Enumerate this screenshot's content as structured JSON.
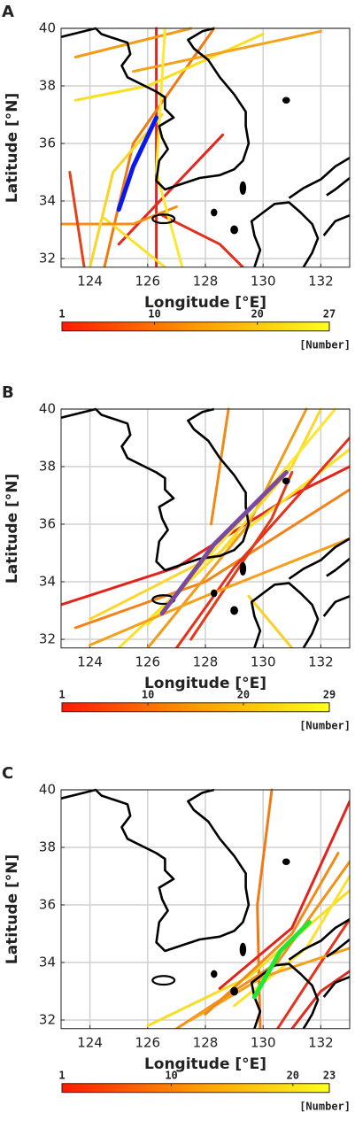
{
  "chart_data": [
    {
      "type": "line",
      "title": "A",
      "xlabel": "Longitude [°E]",
      "ylabel": "Latitude [°N]",
      "xlim": [
        123,
        133
      ],
      "ylim": [
        31.7,
        40
      ],
      "xticks": [
        124,
        126,
        128,
        130,
        132
      ],
      "yticks": [
        32,
        34,
        36,
        38,
        40
      ],
      "grid": true,
      "series": [
        {
          "color": "#e8221c",
          "x": [
            126.3,
            126.3
          ],
          "values": [
            31.7,
            40
          ]
        },
        {
          "color": "#f07a12",
          "x": [
            124.5,
            125.5,
            128.3
          ],
          "values": [
            31.7,
            36,
            40
          ]
        },
        {
          "color": "#f8e020",
          "x": [
            123.5,
            126,
            130
          ],
          "values": [
            37.5,
            38,
            39.8
          ]
        },
        {
          "color": "#f39a18",
          "x": [
            123.5,
            127.5
          ],
          "values": [
            39,
            40
          ]
        },
        {
          "color": "#e4281e",
          "x": [
            125,
            128.6
          ],
          "values": [
            32.5,
            36.3
          ]
        },
        {
          "color": "#fbe12a",
          "x": [
            124.5,
            126.6
          ],
          "values": [
            33.4,
            31.7
          ]
        },
        {
          "color": "#f38f16",
          "x": [
            123,
            125.5,
            127
          ],
          "values": [
            33.2,
            33.2,
            33.8
          ]
        },
        {
          "color": "#e3301c",
          "x": [
            126.5,
            128.5,
            129.3
          ],
          "values": [
            33.5,
            32.5,
            31.7
          ]
        },
        {
          "color": "#fbd424",
          "x": [
            124,
            124.8,
            126.5
          ],
          "values": [
            31.7,
            35,
            37
          ]
        },
        {
          "color": "#f5a21a",
          "x": [
            125.5,
            132
          ],
          "values": [
            38.5,
            39.9
          ]
        },
        {
          "color": "#e5401a",
          "x": [
            123.3,
            123.8
          ],
          "values": [
            35,
            31.7
          ]
        },
        {
          "color": "#fce830",
          "x": [
            127.2,
            126.3,
            126.6
          ],
          "values": [
            31.7,
            35,
            40
          ]
        },
        {
          "color": "#0a18f0",
          "linewidth": 5,
          "x": [
            125,
            125.5,
            126.3
          ],
          "values": [
            33.7,
            35.2,
            36.9
          ]
        }
      ],
      "colorbar": {
        "clim": [
          1,
          27
        ],
        "ticks": [
          1,
          10,
          20,
          27
        ],
        "label": "[Number]",
        "colors": [
          "#ff1a00",
          "#ff9a00",
          "#ffff20"
        ]
      }
    },
    {
      "type": "line",
      "title": "B",
      "xlabel": "Longitude [°E]",
      "ylabel": "Latitude [°N]",
      "xlim": [
        123,
        133
      ],
      "ylim": [
        31.7,
        40
      ],
      "xticks": [
        124,
        126,
        128,
        130,
        132
      ],
      "yticks": [
        32,
        34,
        36,
        38,
        40
      ],
      "grid": true,
      "series": [
        {
          "color": "#e4221c",
          "x": [
            123,
            127,
            131,
            133
          ],
          "values": [
            33.2,
            34.5,
            37,
            38
          ]
        },
        {
          "color": "#f28318",
          "x": [
            123.5,
            128,
            133
          ],
          "values": [
            32.4,
            34,
            37.2
          ]
        },
        {
          "color": "#fbe024",
          "x": [
            125,
            129,
            133
          ],
          "values": [
            31.7,
            35.5,
            38.6
          ]
        },
        {
          "color": "#f39a18",
          "x": [
            126,
            129.5,
            131.5
          ],
          "values": [
            31.7,
            36,
            40
          ]
        },
        {
          "color": "#e6301c",
          "x": [
            127,
            129,
            133
          ],
          "values": [
            31.7,
            34.5,
            39
          ]
        },
        {
          "color": "#fcd82a",
          "x": [
            124,
            128.5,
            131,
            132
          ],
          "values": [
            32.7,
            35,
            38,
            40
          ]
        },
        {
          "color": "#f08a14",
          "x": [
            128.2,
            128.8
          ],
          "values": [
            36,
            40
          ]
        },
        {
          "color": "#e33a1a",
          "x": [
            127.5,
            130.3,
            131
          ],
          "values": [
            32,
            36.2,
            37.8
          ]
        },
        {
          "color": "#fce630",
          "x": [
            126,
            130,
            132.5
          ],
          "values": [
            32.5,
            37,
            40
          ]
        },
        {
          "color": "#fbd020",
          "x": [
            129.5,
            131
          ],
          "values": [
            33.5,
            31.7
          ]
        },
        {
          "color": "#f4a01a",
          "x": [
            124,
            128,
            133
          ],
          "values": [
            31.8,
            33.5,
            35.5
          ]
        },
        {
          "color": "#7a4aa0",
          "linewidth": 5,
          "x": [
            126.5,
            128.3,
            130.8
          ],
          "values": [
            32.9,
            35.3,
            37.8
          ]
        }
      ],
      "colorbar": {
        "clim": [
          1,
          29
        ],
        "ticks": [
          1,
          10,
          20,
          29
        ],
        "label": "[Number]",
        "colors": [
          "#ff1a00",
          "#ff9a00",
          "#ffff20"
        ]
      }
    },
    {
      "type": "line",
      "title": "C",
      "xlabel": "Longitude [°E]",
      "ylabel": "Latitude [°N]",
      "xlim": [
        123,
        133
      ],
      "ylim": [
        31.7,
        40
      ],
      "xticks": [
        124,
        126,
        128,
        130,
        132
      ],
      "yticks": [
        32,
        34,
        36,
        38,
        40
      ],
      "grid": true,
      "series": [
        {
          "color": "#f07a14",
          "x": [
            129.9,
            129.8,
            130.3
          ],
          "values": [
            31.7,
            36,
            40
          ]
        },
        {
          "color": "#fbdc24",
          "x": [
            126,
            129.5,
            133
          ],
          "values": [
            31.8,
            33.5,
            36.5
          ]
        },
        {
          "color": "#f39018",
          "x": [
            127,
            130.5,
            133
          ],
          "values": [
            31.7,
            34,
            37.5
          ]
        },
        {
          "color": "#e4221c",
          "x": [
            128.5,
            131,
            133
          ],
          "values": [
            33.1,
            35.2,
            39.6
          ]
        },
        {
          "color": "#e6341c",
          "x": [
            130.5,
            132,
            133
          ],
          "values": [
            31.7,
            34,
            35.5
          ]
        },
        {
          "color": "#fce22a",
          "x": [
            129,
            131.5,
            133
          ],
          "values": [
            32.5,
            34.5,
            37
          ]
        },
        {
          "color": "#f5a01a",
          "x": [
            127.5,
            130,
            133
          ],
          "values": [
            32,
            33.5,
            34.5
          ]
        },
        {
          "color": "#e3281c",
          "x": [
            131,
            132,
            133
          ],
          "values": [
            31.7,
            33,
            33.7
          ]
        },
        {
          "color": "#f28a16",
          "x": [
            128,
            131,
            132.6
          ],
          "values": [
            32.2,
            35,
            37.8
          ]
        },
        {
          "color": "#20e830",
          "linewidth": 5,
          "x": [
            129.7,
            130.6,
            131.6
          ],
          "values": [
            32.8,
            34.4,
            35.4
          ]
        }
      ],
      "colorbar": {
        "clim": [
          1,
          23
        ],
        "ticks": [
          1,
          10,
          20,
          23
        ],
        "label": "[Number]",
        "colors": [
          "#ff1a00",
          "#ff9a00",
          "#ffff20"
        ]
      }
    }
  ]
}
